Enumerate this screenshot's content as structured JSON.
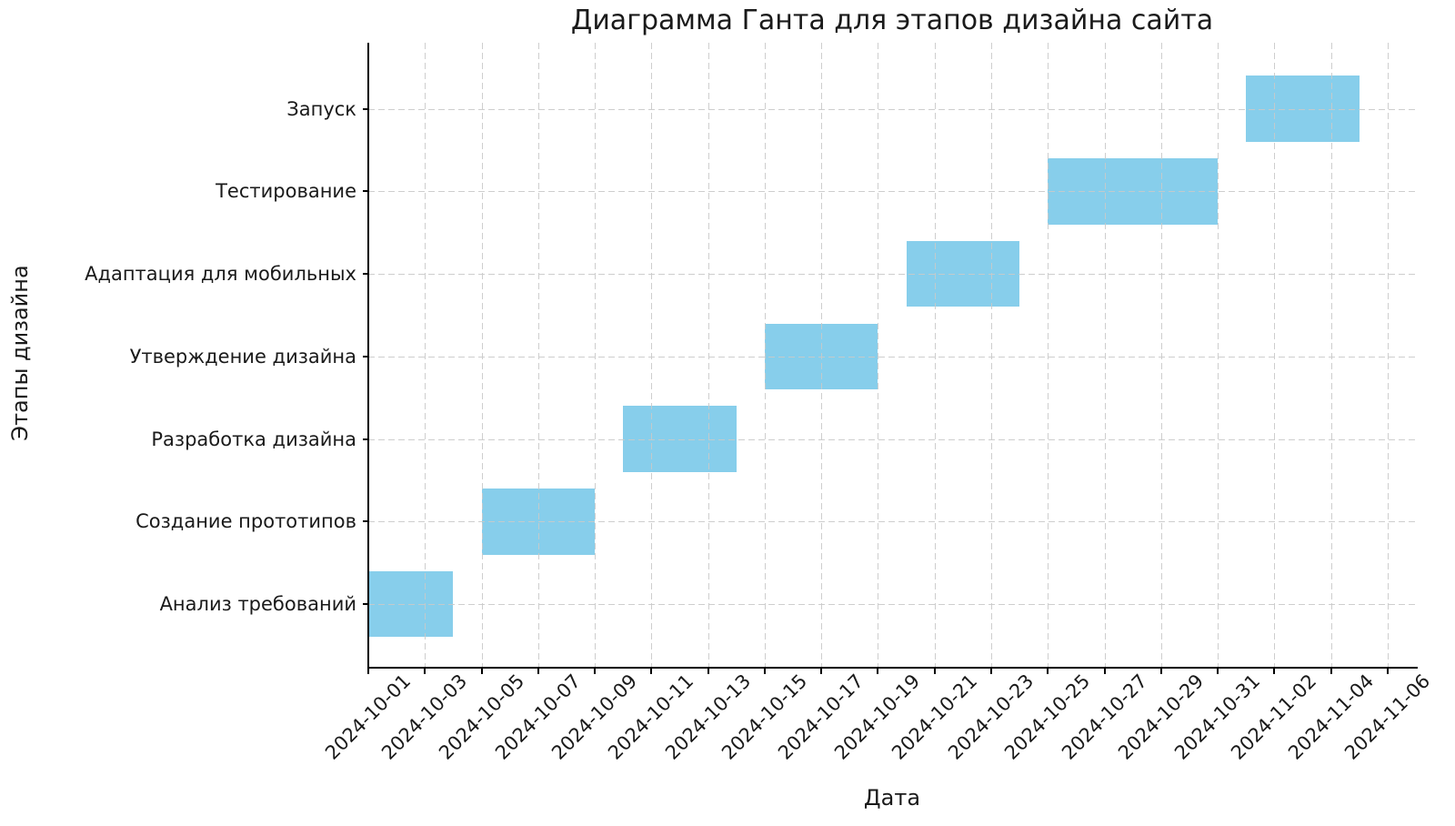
{
  "chart_data": {
    "type": "bar",
    "variant": "gantt-horizontal",
    "title": "Диаграмма Ганта для этапов дизайна сайта",
    "xlabel": "Дата",
    "ylabel": "Этапы дизайна",
    "legend": false,
    "grid": true,
    "categories": [
      "Анализ требований",
      "Создание прототипов",
      "Разработка дизайна",
      "Утверждение дизайна",
      "Адаптация для мобильных",
      "Тестирование",
      "Запуск"
    ],
    "tasks": [
      {
        "name": "Анализ требований",
        "start": "2024-10-01",
        "end": "2024-10-04",
        "duration_days": 3
      },
      {
        "name": "Создание прототипов",
        "start": "2024-10-05",
        "end": "2024-10-09",
        "duration_days": 4
      },
      {
        "name": "Разработка дизайна",
        "start": "2024-10-10",
        "end": "2024-10-14",
        "duration_days": 4
      },
      {
        "name": "Утверждение дизайна",
        "start": "2024-10-15",
        "end": "2024-10-19",
        "duration_days": 4
      },
      {
        "name": "Адаптация для мобильных",
        "start": "2024-10-20",
        "end": "2024-10-24",
        "duration_days": 4
      },
      {
        "name": "Тестирование",
        "start": "2024-10-25",
        "end": "2024-10-31",
        "duration_days": 6
      },
      {
        "name": "Запуск",
        "start": "2024-11-01",
        "end": "2024-11-05",
        "duration_days": 4
      }
    ],
    "x_ticks": [
      "2024-10-01",
      "2024-10-03",
      "2024-10-05",
      "2024-10-07",
      "2024-10-09",
      "2024-10-11",
      "2024-10-13",
      "2024-10-15",
      "2024-10-17",
      "2024-10-19",
      "2024-10-21",
      "2024-10-23",
      "2024-10-25",
      "2024-10-27",
      "2024-10-29",
      "2024-10-31",
      "2024-11-02",
      "2024-11-04",
      "2024-11-06"
    ],
    "x_tick_rotation_deg": 45,
    "xlim": [
      "2024-10-01",
      "2024-11-07"
    ],
    "ylim": [
      -0.76,
      6.8
    ],
    "bar_height_units": 0.8,
    "colors": {
      "bar": "#87CEEB",
      "grid": "#c9c9c9",
      "axis": "#000000",
      "text": "#1a1a1a",
      "background": "#ffffff"
    }
  }
}
